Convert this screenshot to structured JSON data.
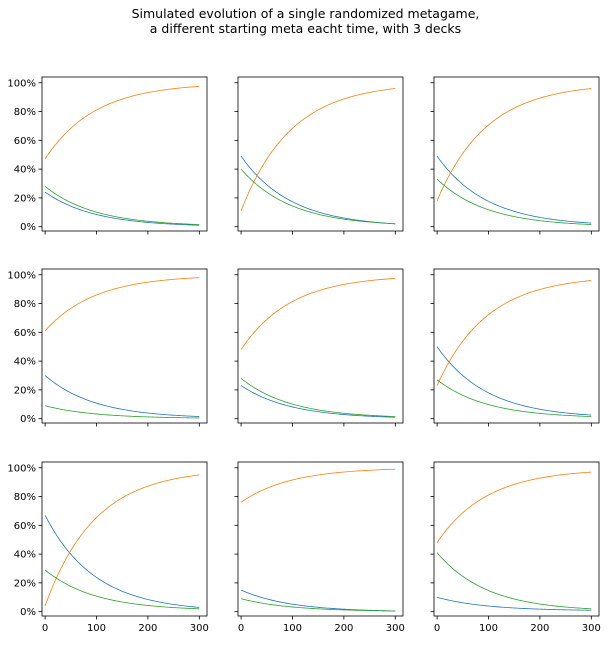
{
  "title_line1": "Simulated evolution of a single randomized metagame,",
  "title_line2": "a different starting meta eacht time, with 3 decks",
  "colors": {
    "series1": "#1f77b4",
    "series2": "#ff7f0e",
    "series3": "#2ca02c"
  },
  "chart_data": {
    "type": "line",
    "grid": false,
    "layout": "3x3 small multiples, shared x and y axes",
    "xlim": [
      -6,
      315
    ],
    "ylim": [
      -0.03,
      1.04
    ],
    "x_ticks": [
      0,
      100,
      200,
      300
    ],
    "x_tick_labels": [
      "0",
      "100",
      "200",
      "300"
    ],
    "y_ticks": [
      0,
      0.2,
      0.4,
      0.6,
      0.8,
      1.0
    ],
    "y_tick_labels": [
      "0%",
      "20%",
      "40%",
      "60%",
      "80%",
      "100%"
    ],
    "x_range": [
      0,
      300
    ],
    "panels": [
      {
        "series": [
          {
            "color": "#1f77b4",
            "start": 0.24,
            "end": 0.01
          },
          {
            "color": "#ff7f0e",
            "start": 0.47,
            "end": 0.975
          },
          {
            "color": "#2ca02c",
            "start": 0.28,
            "end": 0.015
          }
        ]
      },
      {
        "series": [
          {
            "color": "#1f77b4",
            "start": 0.49,
            "end": 0.02
          },
          {
            "color": "#ff7f0e",
            "start": 0.11,
            "end": 0.96
          },
          {
            "color": "#2ca02c",
            "start": 0.4,
            "end": 0.02
          }
        ]
      },
      {
        "series": [
          {
            "color": "#1f77b4",
            "start": 0.49,
            "end": 0.025
          },
          {
            "color": "#ff7f0e",
            "start": 0.18,
            "end": 0.96
          },
          {
            "color": "#2ca02c",
            "start": 0.33,
            "end": 0.015
          }
        ]
      },
      {
        "series": [
          {
            "color": "#1f77b4",
            "start": 0.3,
            "end": 0.015
          },
          {
            "color": "#ff7f0e",
            "start": 0.61,
            "end": 0.98
          },
          {
            "color": "#2ca02c",
            "start": 0.09,
            "end": 0.005
          }
        ]
      },
      {
        "series": [
          {
            "color": "#1f77b4",
            "start": 0.23,
            "end": 0.01
          },
          {
            "color": "#ff7f0e",
            "start": 0.48,
            "end": 0.975
          },
          {
            "color": "#2ca02c",
            "start": 0.28,
            "end": 0.015
          }
        ]
      },
      {
        "series": [
          {
            "color": "#1f77b4",
            "start": 0.5,
            "end": 0.025
          },
          {
            "color": "#ff7f0e",
            "start": 0.23,
            "end": 0.96
          },
          {
            "color": "#2ca02c",
            "start": 0.27,
            "end": 0.015
          }
        ]
      },
      {
        "series": [
          {
            "color": "#1f77b4",
            "start": 0.67,
            "end": 0.03
          },
          {
            "color": "#ff7f0e",
            "start": 0.04,
            "end": 0.95
          },
          {
            "color": "#2ca02c",
            "start": 0.29,
            "end": 0.02
          }
        ]
      },
      {
        "series": [
          {
            "color": "#1f77b4",
            "start": 0.15,
            "end": 0.005
          },
          {
            "color": "#ff7f0e",
            "start": 0.76,
            "end": 0.99
          },
          {
            "color": "#2ca02c",
            "start": 0.09,
            "end": 0.005
          }
        ]
      },
      {
        "series": [
          {
            "color": "#1f77b4",
            "start": 0.1,
            "end": 0.01
          },
          {
            "color": "#ff7f0e",
            "start": 0.48,
            "end": 0.97
          },
          {
            "color": "#2ca02c",
            "start": 0.41,
            "end": 0.02
          }
        ]
      }
    ]
  }
}
